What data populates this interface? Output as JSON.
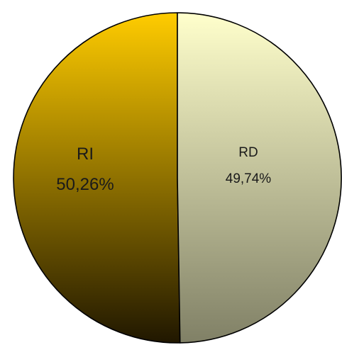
{
  "chart_data": {
    "type": "pie",
    "title": "",
    "slices": [
      {
        "label": "RI",
        "value": 50.26,
        "display": "50,26%",
        "gradient": [
          "#ffcc00",
          "#201700"
        ]
      },
      {
        "label": "RD",
        "value": 49.74,
        "display": "49,74%",
        "gradient": [
          "#ffffcc",
          "#808066"
        ]
      }
    ],
    "legend": "none"
  }
}
